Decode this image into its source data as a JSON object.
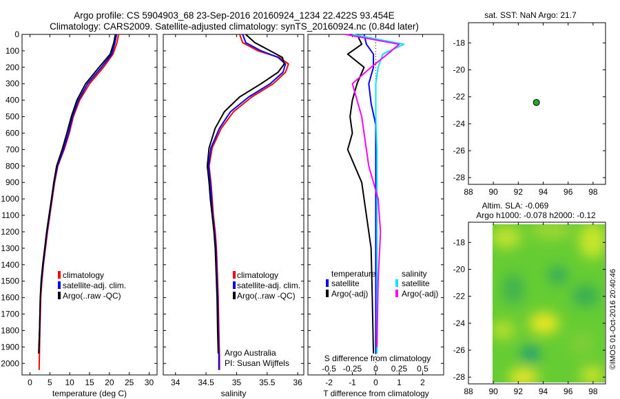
{
  "header": {
    "title_line1": "Argo profile: CS 5904903_68 23-Sep-2016 20160924_1234 22.422S 93.454E",
    "title_line2": "Climatology: CARS2009. Satellite-adjusted climatology: synTS_20160924.nc (0.84d later)"
  },
  "colors": {
    "climatology": "#ff0000",
    "satellite": "#0000ff",
    "argo": "#000000",
    "satellite_salinity": "#00e5ff",
    "argo_salinity": "#ff00ff",
    "marker": "#22aa22"
  },
  "depth_axis": {
    "ticks": [
      0,
      100,
      200,
      300,
      400,
      500,
      600,
      700,
      800,
      900,
      1000,
      1100,
      1200,
      1300,
      1400,
      1500,
      1600,
      1700,
      1800,
      1900,
      2000
    ]
  },
  "chart_data": [
    {
      "type": "line",
      "id": "temperature",
      "xlabel": "temperature (deg C)",
      "xlim": [
        -2,
        32
      ],
      "ylim": [
        2070,
        0
      ],
      "xticks": [
        0,
        5,
        10,
        15,
        20,
        25,
        30
      ],
      "legend": [
        "climatology",
        "satellite-adj. clim.",
        "Argo(..raw -QC)"
      ],
      "series": [
        {
          "name": "climatology",
          "color": "#ff0000",
          "x": [
            22.3,
            21.9,
            20.9,
            18.5,
            15.0,
            12.5,
            10.9,
            9.9,
            8.6,
            7.0,
            6.2,
            5.6,
            5.0,
            4.4,
            3.9,
            3.4,
            3.0,
            2.7,
            2.5,
            2.3
          ],
          "y": [
            0,
            50,
            120,
            200,
            300,
            400,
            500,
            600,
            700,
            800,
            900,
            1000,
            1100,
            1200,
            1300,
            1400,
            1500,
            1600,
            1800,
            2040
          ]
        },
        {
          "name": "satellite-adj. clim.",
          "color": "#0000ff",
          "x": [
            21.8,
            21.4,
            20.6,
            18.0,
            14.5,
            12.2,
            10.7,
            9.7,
            8.4,
            6.9,
            6.1,
            5.5,
            4.9,
            4.3,
            3.8,
            3.3,
            2.9,
            2.6,
            2.4,
            2.2
          ],
          "y": [
            0,
            50,
            120,
            200,
            300,
            400,
            500,
            600,
            700,
            800,
            900,
            1000,
            1100,
            1200,
            1300,
            1400,
            1500,
            1600,
            1800,
            1940
          ]
        },
        {
          "name": "Argo(..raw -QC)",
          "color": "#000000",
          "x": [
            21.5,
            21.1,
            20.2,
            17.4,
            14.0,
            11.8,
            10.4,
            9.3,
            8.1,
            6.7,
            6.0,
            5.4,
            4.8,
            4.2,
            3.7,
            3.2,
            2.8,
            2.6,
            2.4,
            2.2
          ],
          "y": [
            0,
            50,
            120,
            200,
            300,
            400,
            500,
            600,
            700,
            800,
            900,
            1000,
            1100,
            1200,
            1300,
            1400,
            1500,
            1600,
            1800,
            1940
          ]
        }
      ]
    },
    {
      "type": "line",
      "id": "salinity",
      "xlabel": "salinity",
      "xlim": [
        33.8,
        36.1
      ],
      "ylim": [
        2070,
        0
      ],
      "xticks": [
        34,
        34.5,
        35,
        35.5,
        36
      ],
      "legend": [
        "climatology",
        "satellite-adj. clim.",
        "Argo(..raw -QC)"
      ],
      "annotation": [
        "Argo Australia",
        "PI: Susan Wijffels"
      ],
      "series": [
        {
          "name": "climatology",
          "color": "#ff0000",
          "x": [
            35.05,
            35.1,
            35.35,
            35.7,
            35.85,
            35.8,
            35.6,
            35.25,
            34.95,
            34.75,
            34.6,
            34.55,
            34.58,
            34.6,
            34.62,
            34.65,
            34.67,
            34.68,
            34.7,
            34.71,
            34.72,
            34.72
          ],
          "y": [
            0,
            50,
            100,
            140,
            180,
            230,
            300,
            380,
            470,
            570,
            690,
            800,
            900,
            1000,
            1100,
            1200,
            1300,
            1400,
            1600,
            1800,
            1950,
            2040
          ]
        },
        {
          "name": "satellite-adj. clim.",
          "color": "#0000ff",
          "x": [
            35.1,
            35.15,
            35.4,
            35.68,
            35.8,
            35.76,
            35.55,
            35.2,
            34.9,
            34.72,
            34.58,
            34.54,
            34.57,
            34.59,
            34.61,
            34.64,
            34.66,
            34.67,
            34.69,
            34.7,
            34.71,
            34.71
          ],
          "y": [
            0,
            50,
            100,
            140,
            180,
            230,
            300,
            380,
            470,
            570,
            690,
            800,
            900,
            1000,
            1100,
            1200,
            1300,
            1400,
            1600,
            1800,
            1950,
            2040
          ]
        },
        {
          "name": "Argo(..raw -QC)",
          "color": "#000000",
          "x": [
            35.15,
            35.3,
            35.55,
            35.75,
            35.78,
            35.68,
            35.4,
            35.05,
            34.8,
            34.65,
            34.55,
            34.52,
            34.55,
            34.57,
            34.6,
            34.63,
            34.65,
            34.66,
            34.68,
            34.69,
            34.7
          ],
          "y": [
            0,
            50,
            100,
            140,
            180,
            230,
            300,
            380,
            470,
            570,
            690,
            800,
            900,
            1000,
            1100,
            1200,
            1300,
            1400,
            1600,
            1800,
            1940
          ]
        }
      ]
    },
    {
      "type": "line",
      "id": "differences",
      "xlabel": "T difference from climatology",
      "xlabel_top": "S difference from climatology",
      "xlim": [
        -2.9,
        2.9
      ],
      "ylim": [
        2070,
        0
      ],
      "xticks": [
        -2,
        -1,
        0,
        1,
        2
      ],
      "xticks_top": [
        "-0.5",
        "-0.25",
        "0",
        "0.25",
        "0.5"
      ],
      "legend_left": {
        "title": "temperature",
        "items": [
          "satellite",
          "Argo(-adj)"
        ]
      },
      "legend_right": {
        "title": "salinity",
        "items": [
          "satellite",
          "Argo(-adj)"
        ]
      },
      "series": [
        {
          "name": "temperature satellite",
          "color": "#0000ff",
          "x": [
            -0.5,
            -0.4,
            -0.1,
            -0.1,
            -0.3,
            -0.2,
            0.0,
            0.0,
            0.0,
            0.0,
            0.0,
            0.0,
            0.0
          ],
          "y": [
            0,
            60,
            120,
            200,
            300,
            420,
            550,
            700,
            900,
            1200,
            1500,
            1800,
            1940
          ]
        },
        {
          "name": "temperature Argo(-adj)",
          "color": "#000000",
          "x": [
            -0.8,
            -0.6,
            -1.2,
            -0.5,
            -0.8,
            -1.0,
            -1.1,
            -1.0,
            -1.2,
            -0.9,
            -0.6,
            -0.4,
            -0.2,
            -0.15,
            -0.1
          ],
          "y": [
            0,
            60,
            120,
            200,
            300,
            400,
            500,
            600,
            700,
            800,
            900,
            1100,
            1300,
            1600,
            1940
          ]
        },
        {
          "name": "salinity satellite",
          "color": "#00e5ff",
          "x": [
            -1.0,
            1.2,
            0.3,
            0.1,
            0.0,
            0.0,
            0.05,
            0.05,
            0.05,
            0.05,
            0.05,
            0.05
          ],
          "y": [
            0,
            60,
            120,
            200,
            300,
            500,
            700,
            900,
            1200,
            1500,
            1800,
            1940
          ]
        },
        {
          "name": "salinity Argo(-adj)",
          "color": "#ff00ff",
          "x": [
            -1.3,
            1.0,
            0.5,
            -0.2,
            -1.0,
            -0.6,
            -0.4,
            -0.3,
            -0.1,
            0.1,
            0.2,
            0.1,
            0.05
          ],
          "y": [
            0,
            60,
            120,
            200,
            300,
            500,
            700,
            800,
            900,
            1000,
            1200,
            1500,
            1900
          ]
        }
      ]
    },
    {
      "type": "scatter",
      "id": "sst_map",
      "title": "sat. SST: NaN Argo: 21.7",
      "xlim": [
        88,
        99
      ],
      "ylim": [
        -28.5,
        -16.5
      ],
      "xticks": [
        88,
        90,
        92,
        94,
        96,
        98
      ],
      "yticks": [
        -18,
        -20,
        -22,
        -24,
        -26,
        -28
      ],
      "points": [
        {
          "x": 93.454,
          "y": -22.422
        }
      ]
    },
    {
      "type": "heatmap",
      "id": "sla_map",
      "title_line1": "Altim. SLA: -0.069",
      "title_line2": "Argo h1000: -0.078 h2000: -0.12",
      "xlim": [
        88,
        99
      ],
      "ylim": [
        -28.5,
        -16.5
      ],
      "xticks": [
        88,
        90,
        92,
        94,
        96,
        98
      ],
      "yticks": [
        -18,
        -20,
        -22,
        -24,
        -26,
        -28
      ],
      "data_extent_x": [
        90,
        99
      ],
      "points": [
        {
          "x": 93.454,
          "y": -22.422
        }
      ]
    }
  ],
  "footer": {
    "watermark": "©IMOS 01-Oct-2016 20:40:46"
  }
}
